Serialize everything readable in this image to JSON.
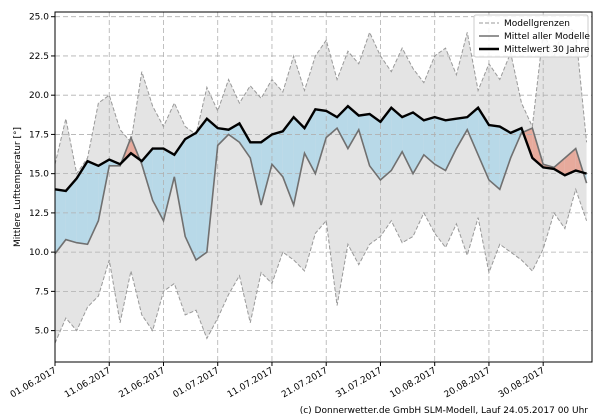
{
  "chart_data": {
    "type": "band-line",
    "y_label": "Mittlere Lufttemperatur [°]",
    "credit": "(c) Donnerwetter.de GmbH SLM-Modell, Lauf 24.05.2017 00 Uhr",
    "x": [
      "01.06.2017",
      "03.06.2017",
      "05.06.2017",
      "07.06.2017",
      "09.06.2017",
      "11.06.2017",
      "13.06.2017",
      "15.06.2017",
      "17.06.2017",
      "19.06.2017",
      "21.06.2017",
      "23.06.2017",
      "25.06.2017",
      "27.06.2017",
      "29.06.2017",
      "01.07.2017",
      "03.07.2017",
      "05.07.2017",
      "07.07.2017",
      "09.07.2017",
      "11.07.2017",
      "13.07.2017",
      "15.07.2017",
      "17.07.2017",
      "19.07.2017",
      "21.07.2017",
      "23.07.2017",
      "25.07.2017",
      "27.07.2017",
      "29.07.2017",
      "31.07.2017",
      "02.08.2017",
      "04.08.2017",
      "06.08.2017",
      "08.08.2017",
      "10.08.2017",
      "12.08.2017",
      "14.08.2017",
      "16.08.2017",
      "18.08.2017",
      "20.08.2017",
      "22.08.2017",
      "24.08.2017",
      "26.08.2017",
      "28.08.2017",
      "30.08.2017",
      "01.09.2017",
      "03.09.2017",
      "05.09.2017",
      "07.09.2017"
    ],
    "xlim": [
      "01.06.2017",
      "08.09.2017"
    ],
    "xticks": [
      "01.06.2017",
      "11.06.2017",
      "21.06.2017",
      "01.07.2017",
      "11.07.2017",
      "21.07.2017",
      "31.07.2017",
      "10.08.2017",
      "20.08.2017",
      "30.08.2017"
    ],
    "ylim": [
      3.0,
      25.3
    ],
    "yticks": [
      {
        "value": 5,
        "label": "5.0"
      },
      7.5,
      {
        "value": 10,
        "label": "10.0"
      },
      12.5,
      {
        "value": 15,
        "label": "15.0"
      },
      17.5,
      {
        "value": 20,
        "label": "20.0"
      },
      22.5,
      {
        "value": 25,
        "label": "25.0"
      }
    ],
    "grid": true,
    "legend": "upper right",
    "band_color": "#e4e4e4",
    "fill_below": "#b8d9e8",
    "fill_above": "#e7aa9c",
    "series": [
      {
        "name": "Modellgrenzen",
        "color": "#999999",
        "high": [
          15.6,
          18.5,
          15.0,
          16.0,
          19.5,
          20.0,
          17.8,
          17.0,
          21.5,
          19.3,
          18.0,
          19.5,
          18.0,
          17.5,
          20.5,
          19.0,
          21.0,
          19.5,
          20.6,
          19.8,
          21.0,
          20.2,
          22.5,
          20.3,
          22.5,
          23.5,
          21.0,
          22.8,
          22.0,
          24.0,
          22.5,
          21.5,
          23.0,
          21.7,
          20.8,
          22.5,
          23.0,
          21.3,
          24.0,
          20.3,
          22.0,
          21.0,
          22.7,
          19.5,
          18.0,
          24.0,
          22.5,
          24.5,
          24.0,
          17.0
        ],
        "low": [
          4.2,
          5.8,
          5.0,
          6.5,
          7.2,
          9.5,
          5.5,
          8.8,
          6.0,
          5.0,
          7.5,
          8.0,
          6.0,
          6.3,
          4.5,
          5.8,
          7.3,
          8.5,
          5.5,
          8.7,
          8.0,
          10.0,
          9.5,
          8.8,
          11.2,
          12.0,
          6.6,
          10.5,
          9.2,
          10.5,
          11.0,
          12.0,
          10.6,
          11.0,
          12.5,
          11.2,
          10.3,
          11.8,
          9.8,
          12.2,
          8.7,
          10.5,
          10.0,
          9.5,
          8.8,
          10.2,
          12.5,
          11.5,
          14.0,
          12.0
        ]
      },
      {
        "name": "Mittel aller Modelle",
        "color": "#707070",
        "values": [
          9.9,
          10.8,
          10.6,
          10.5,
          12.0,
          15.5,
          15.5,
          17.3,
          15.6,
          13.3,
          12.0,
          14.8,
          11.0,
          9.5,
          10.0,
          16.8,
          17.5,
          17.0,
          16.0,
          13.0,
          15.6,
          14.8,
          13.0,
          16.3,
          15.0,
          17.3,
          17.9,
          16.6,
          17.8,
          15.5,
          14.6,
          15.2,
          16.4,
          15.0,
          16.2,
          15.6,
          15.2,
          16.6,
          17.8,
          16.2,
          14.6,
          14.0,
          16.0,
          17.6,
          17.9,
          15.6,
          15.4,
          16.0,
          16.6,
          14.4
        ]
      },
      {
        "name": "Mittelwert 30 Jahre",
        "color": "#000000",
        "values": [
          14.0,
          13.9,
          14.7,
          15.8,
          15.5,
          15.9,
          15.6,
          16.3,
          15.8,
          16.6,
          16.6,
          16.2,
          17.2,
          17.6,
          18.5,
          17.9,
          17.8,
          18.2,
          17.0,
          17.0,
          17.5,
          17.7,
          18.6,
          17.9,
          19.1,
          19.0,
          18.6,
          19.3,
          18.7,
          18.8,
          18.3,
          19.2,
          18.6,
          18.9,
          18.4,
          18.6,
          18.4,
          18.5,
          18.6,
          19.2,
          18.1,
          18.0,
          17.6,
          17.9,
          16.0,
          15.4,
          15.3,
          14.9,
          15.2,
          15.0
        ]
      }
    ]
  }
}
